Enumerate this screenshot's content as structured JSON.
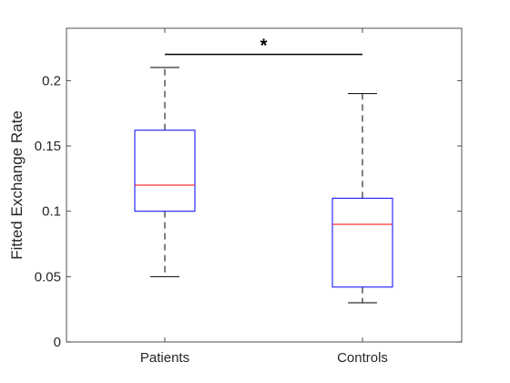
{
  "chart_data": {
    "type": "box",
    "ylabel": "Fitted Exchange Rate",
    "xlabel": "",
    "ylim": [
      0,
      0.24
    ],
    "y_ticks": [
      0,
      0.05,
      0.1,
      0.15,
      0.2
    ],
    "y_tick_labels": [
      "0",
      "0.05",
      "0.1",
      "0.15",
      "0.2"
    ],
    "categories": [
      "Patients",
      "Controls"
    ],
    "boxes": [
      {
        "category": "Patients",
        "whisker_low": 0.05,
        "q1": 0.1,
        "median": 0.12,
        "q3": 0.162,
        "whisker_high": 0.21
      },
      {
        "category": "Controls",
        "whisker_low": 0.03,
        "q1": 0.042,
        "median": 0.09,
        "q3": 0.11,
        "whisker_high": 0.19
      }
    ],
    "significance": {
      "label": "*",
      "between": [
        "Patients",
        "Controls"
      ],
      "y": 0.22
    },
    "colors": {
      "box": "#0000ff",
      "median": "#ff0000",
      "whisker": "#000000",
      "axis": "#262626"
    }
  }
}
